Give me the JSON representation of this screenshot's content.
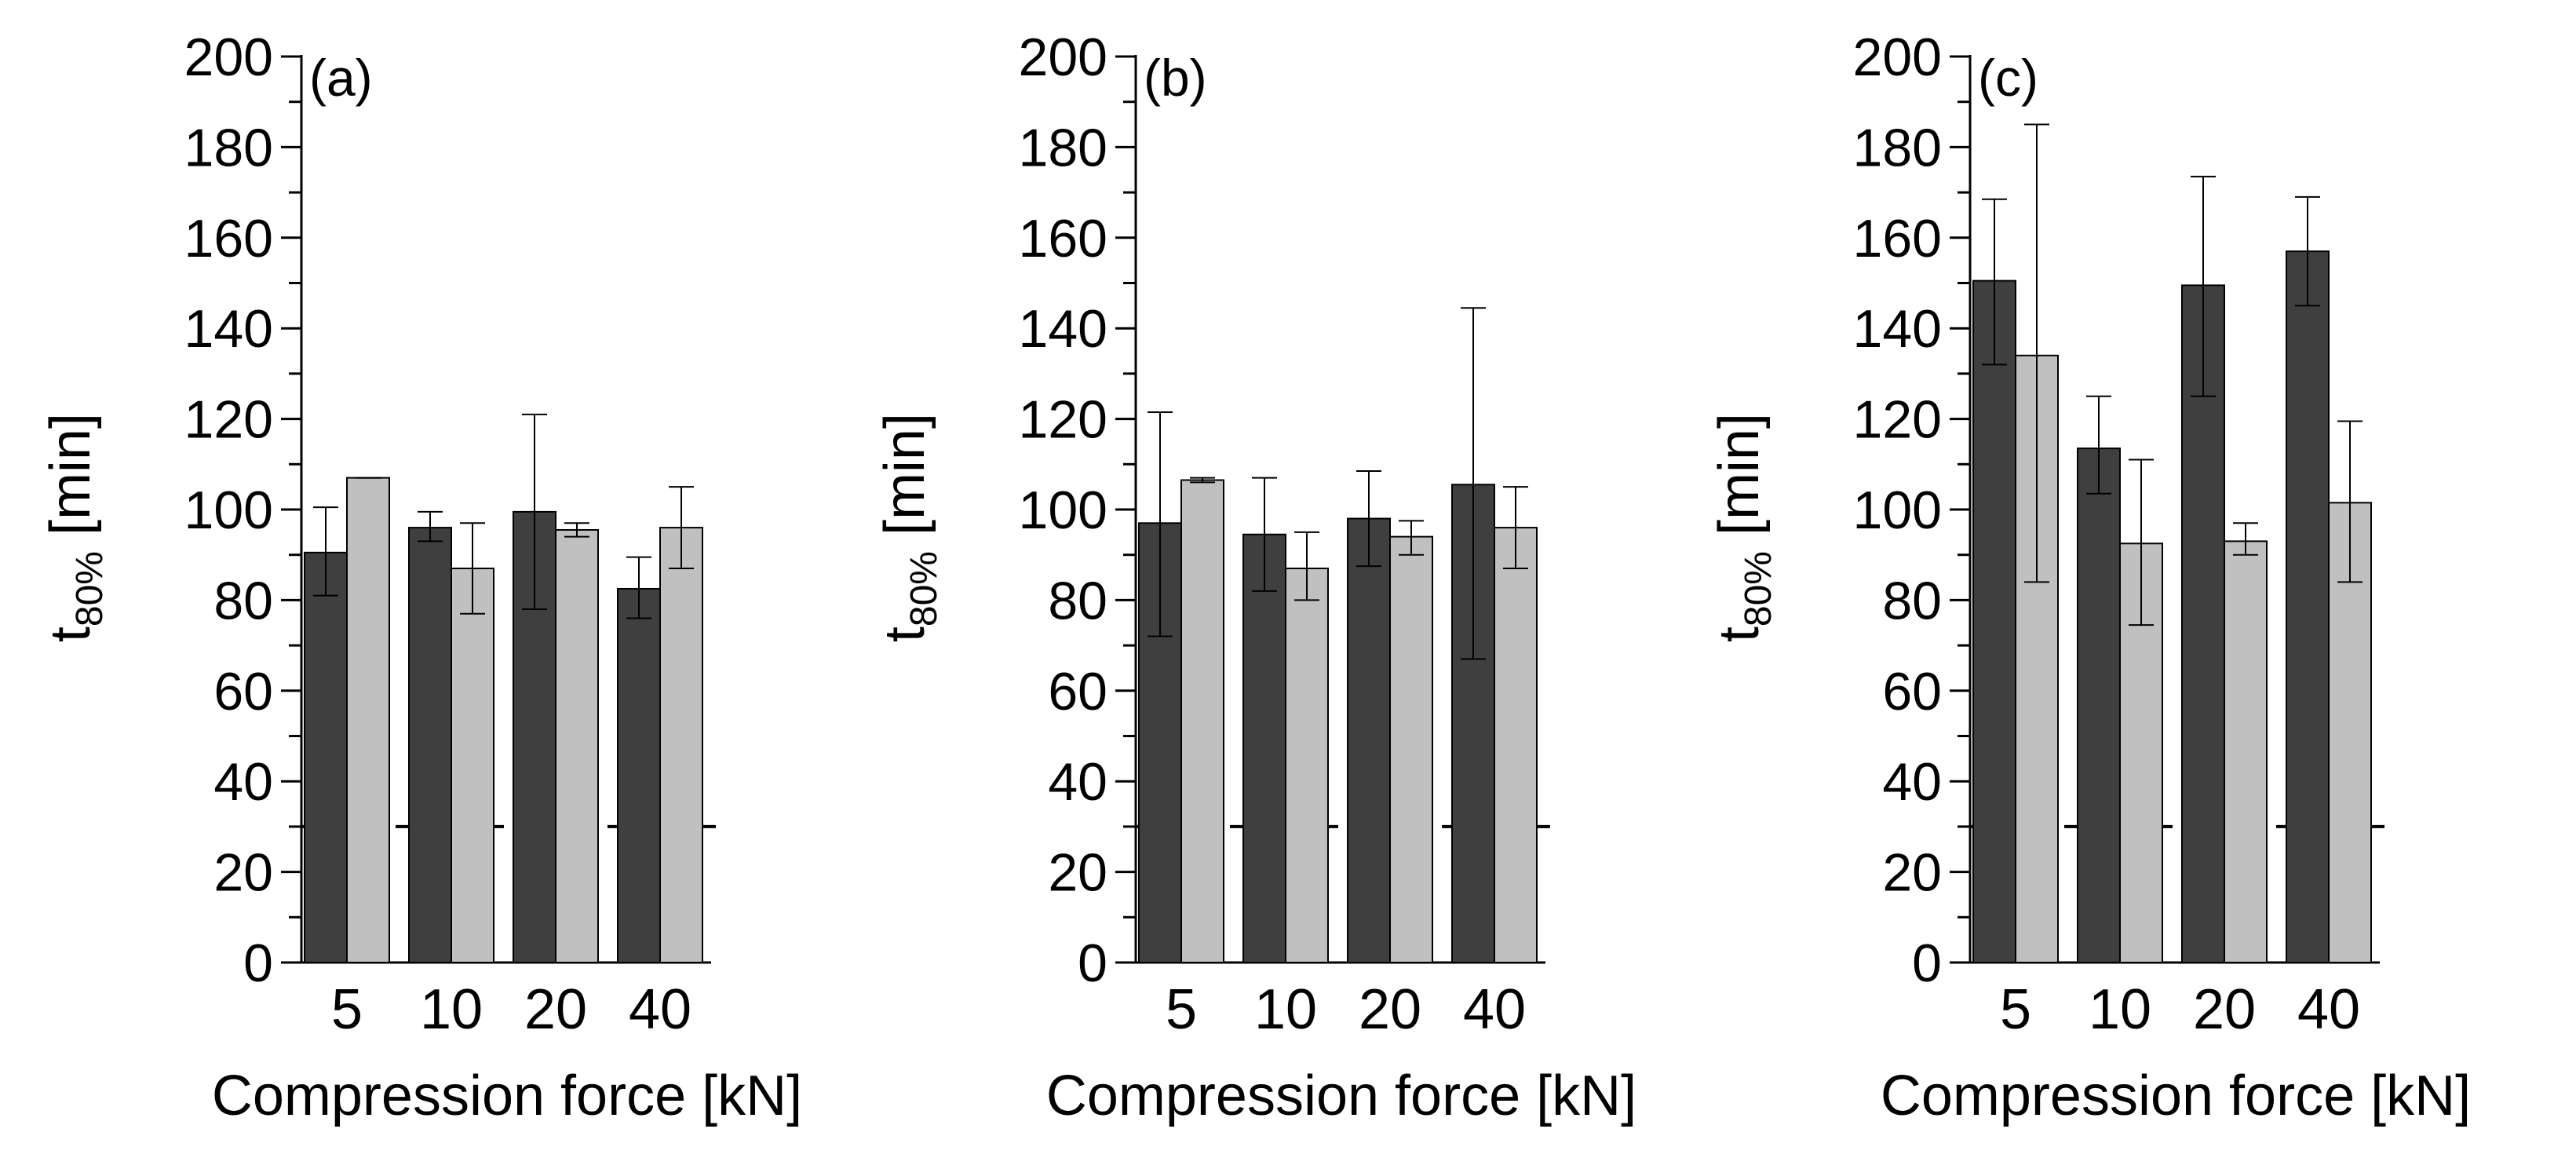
{
  "figure": {
    "panels": [
      "(a)",
      "(b)",
      "(c)"
    ]
  },
  "colors": {
    "series_dark": "#3f3f3f",
    "series_light": "#c0c0c0",
    "axis": "#000000"
  },
  "chart_data": [
    {
      "type": "bar",
      "panel_label": "(a)",
      "categories": [
        "5",
        "10",
        "20",
        "40"
      ],
      "xlabel": "Compression force [kN]",
      "ylabel_main": "t",
      "ylabel_sub": "80%",
      "ylabel_unit": "[min]",
      "ylim": [
        0,
        200
      ],
      "yticks": [
        "0",
        "20",
        "40",
        "60",
        "80",
        "100",
        "120",
        "140",
        "160",
        "180",
        "200"
      ],
      "reference_line": 30,
      "series": [
        {
          "name": "dark",
          "values": [
            90.5,
            96,
            99.5,
            82.5
          ],
          "err_low": [
            81,
            93,
            78,
            76
          ],
          "err_high": [
            100.5,
            99.5,
            121,
            89.5
          ]
        },
        {
          "name": "light",
          "values": [
            107,
            87,
            95.5,
            96
          ],
          "err_low": [
            107,
            77,
            94,
            87
          ],
          "err_high": [
            107,
            97,
            97,
            105
          ]
        }
      ]
    },
    {
      "type": "bar",
      "panel_label": "(b)",
      "categories": [
        "5",
        "10",
        "20",
        "40"
      ],
      "xlabel": "Compression force [kN]",
      "ylabel_main": "t",
      "ylabel_sub": "80%",
      "ylabel_unit": "[min]",
      "ylim": [
        0,
        200
      ],
      "yticks": [
        "0",
        "20",
        "40",
        "60",
        "80",
        "100",
        "120",
        "140",
        "160",
        "180",
        "200"
      ],
      "reference_line": 30,
      "series": [
        {
          "name": "dark",
          "values": [
            97,
            94.5,
            98,
            105.5
          ],
          "err_low": [
            72,
            82,
            87.5,
            67
          ],
          "err_high": [
            121.5,
            107,
            108.5,
            144.5
          ]
        },
        {
          "name": "light",
          "values": [
            106.5,
            87,
            94,
            96
          ],
          "err_low": [
            106,
            80,
            90,
            87
          ],
          "err_high": [
            107,
            95,
            97.5,
            105
          ]
        }
      ]
    },
    {
      "type": "bar",
      "panel_label": "(c)",
      "categories": [
        "5",
        "10",
        "20",
        "40"
      ],
      "xlabel": "Compression force [kN]",
      "ylabel_main": "t",
      "ylabel_sub": "80%",
      "ylabel_unit": "[min]",
      "ylim": [
        0,
        200
      ],
      "yticks": [
        "0",
        "20",
        "40",
        "60",
        "80",
        "100",
        "120",
        "140",
        "160",
        "180",
        "200"
      ],
      "reference_line": 30,
      "series": [
        {
          "name": "dark",
          "values": [
            150.5,
            113.5,
            149.5,
            157
          ],
          "err_low": [
            132,
            103.5,
            125,
            145
          ],
          "err_high": [
            168.5,
            125,
            173.5,
            169
          ]
        },
        {
          "name": "light",
          "values": [
            134,
            92.5,
            93,
            101.5
          ],
          "err_low": [
            84,
            74.5,
            90,
            84
          ],
          "err_high": [
            185,
            111,
            97,
            119.5
          ]
        }
      ]
    }
  ]
}
